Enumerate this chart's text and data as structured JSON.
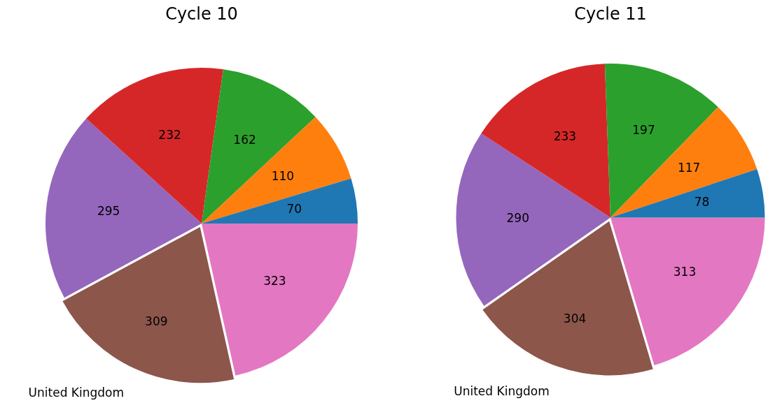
{
  "chart_data": [
    {
      "type": "pie",
      "title": "Cycle 10",
      "categories": [
        null,
        null,
        null,
        null,
        null,
        "United Kingdom",
        null
      ],
      "values": [
        70,
        110,
        162,
        232,
        295,
        309,
        323
      ],
      "colors": [
        "#1f77b4",
        "#ff7f0e",
        "#2ca02c",
        "#d62728",
        "#9467bd",
        "#8c564b",
        "#e377c2"
      ],
      "data_labels": true,
      "legend": false
    },
    {
      "type": "pie",
      "title": "Cycle 11",
      "categories": [
        null,
        null,
        null,
        null,
        null,
        "United Kingdom",
        null
      ],
      "values": [
        78,
        117,
        197,
        233,
        290,
        304,
        313
      ],
      "colors": [
        "#1f77b4",
        "#ff7f0e",
        "#2ca02c",
        "#d62728",
        "#9467bd",
        "#8c564b",
        "#e377c2"
      ],
      "data_labels": true,
      "legend": false
    }
  ]
}
